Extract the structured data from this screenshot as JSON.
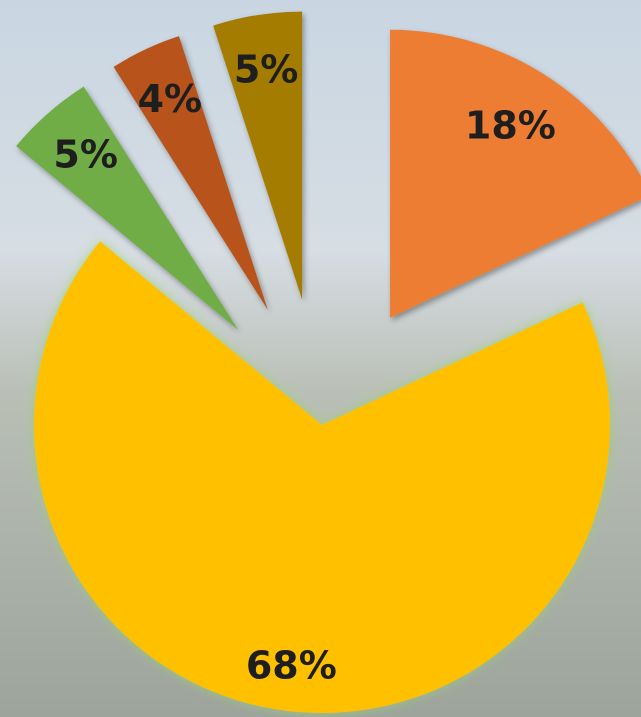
{
  "chart_data": {
    "type": "pie",
    "values": [
      18,
      68,
      5,
      4,
      5
    ],
    "value_labels": [
      "18%",
      "68%",
      "5%",
      "4%",
      "5%"
    ],
    "colors": [
      "#ED7D31",
      "#FFC000",
      "#70AD47",
      "#B9531A",
      "#A47C00"
    ]
  }
}
